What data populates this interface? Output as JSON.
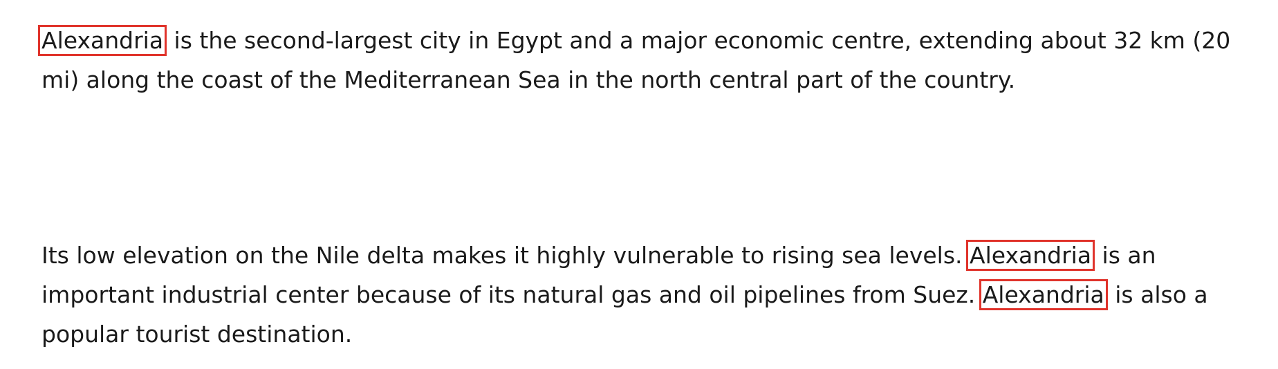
{
  "highlight_color": "#e0332b",
  "paragraphs": [
    {
      "lines": [
        {
          "highlight": "Alexandria",
          "text": " is the second-largest city in Egypt and a major economic centre, extending about 32 km (20"
        },
        {
          "text": "mi) along the coast of the Mediterranean Sea in the north central part of the country."
        }
      ]
    },
    {
      "lines": [
        {
          "text": "Its low elevation on the Nile delta makes it highly vulnerable to rising sea levels. ",
          "highlight": "Alexandria",
          "after": " is an"
        },
        {
          "text": "important industrial center because of its natural gas and oil pipelines from Suez. ",
          "highlight": "Alexandria",
          "after": " is also a"
        },
        {
          "text": "popular tourist destination."
        }
      ]
    }
  ]
}
